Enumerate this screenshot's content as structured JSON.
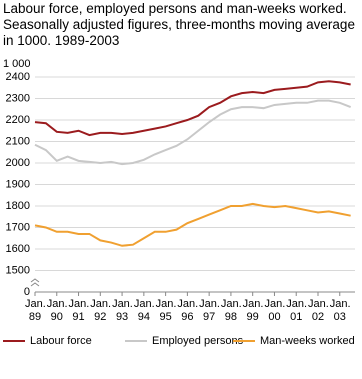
{
  "chart_data": {
    "type": "line",
    "title": "Labour force, employed persons and man-weeks worked. Seasonally adjusted figures, three-months moving average in 1000. 1989-2003",
    "y_unit_label": "1 000",
    "y_break_label": "0",
    "x": [
      1989,
      1989.5,
      1990,
      1990.5,
      1991,
      1991.5,
      1992,
      1992.5,
      1993,
      1993.5,
      1994,
      1994.5,
      1995,
      1995.5,
      1996,
      1996.5,
      1997,
      1997.5,
      1998,
      1998.5,
      1999,
      1999.5,
      2000,
      2000.5,
      2001,
      2001.5,
      2002,
      2002.5,
      2003,
      2003.5
    ],
    "xlim": [
      1989,
      2003.7
    ],
    "xticks": [
      {
        "value": 1989,
        "label": "Jan. 89"
      },
      {
        "value": 1990,
        "label": "Jan. 90"
      },
      {
        "value": 1991,
        "label": "Jan. 91"
      },
      {
        "value": 1992,
        "label": "Jan. 92"
      },
      {
        "value": 1993,
        "label": "Jan. 93"
      },
      {
        "value": 1994,
        "label": "Jan. 94"
      },
      {
        "value": 1995,
        "label": "Jan. 95"
      },
      {
        "value": 1996,
        "label": "Jan. 96"
      },
      {
        "value": 1997,
        "label": "Jan. 97"
      },
      {
        "value": 1998,
        "label": "Jan. 98"
      },
      {
        "value": 1999,
        "label": "Jan. 99"
      },
      {
        "value": 2000,
        "label": "Jan. 00"
      },
      {
        "value": 2001,
        "label": "Jan. 01"
      },
      {
        "value": 2002,
        "label": "Jan. 02"
      },
      {
        "value": 2003,
        "label": "Jan. 03"
      }
    ],
    "ylim": [
      1400,
      2400
    ],
    "yticks": [
      1500,
      1600,
      1700,
      1800,
      1900,
      2000,
      2100,
      2200,
      2300,
      2400
    ],
    "grid": true,
    "legend": "bottom",
    "series": [
      {
        "name": "Labour force",
        "color": "#9b1b1e",
        "values": [
          2190,
          2185,
          2145,
          2140,
          2150,
          2130,
          2140,
          2140,
          2135,
          2140,
          2150,
          2160,
          2170,
          2185,
          2200,
          2220,
          2260,
          2280,
          2310,
          2325,
          2330,
          2325,
          2340,
          2345,
          2350,
          2355,
          2375,
          2380,
          2375,
          2365
        ]
      },
      {
        "name": "Employed persons",
        "color": "#c8c8c8",
        "values": [
          2085,
          2060,
          2010,
          2030,
          2010,
          2005,
          2000,
          2005,
          1995,
          2000,
          2015,
          2040,
          2060,
          2080,
          2110,
          2150,
          2190,
          2225,
          2250,
          2260,
          2260,
          2255,
          2270,
          2275,
          2280,
          2280,
          2290,
          2290,
          2280,
          2260
        ]
      },
      {
        "name": "Man-weeks worked",
        "color": "#f0a030",
        "values": [
          1710,
          1700,
          1680,
          1680,
          1670,
          1670,
          1640,
          1630,
          1615,
          1620,
          1650,
          1680,
          1680,
          1690,
          1720,
          1740,
          1760,
          1780,
          1800,
          1800,
          1810,
          1800,
          1795,
          1800,
          1790,
          1780,
          1770,
          1775,
          1765,
          1755
        ]
      }
    ]
  }
}
